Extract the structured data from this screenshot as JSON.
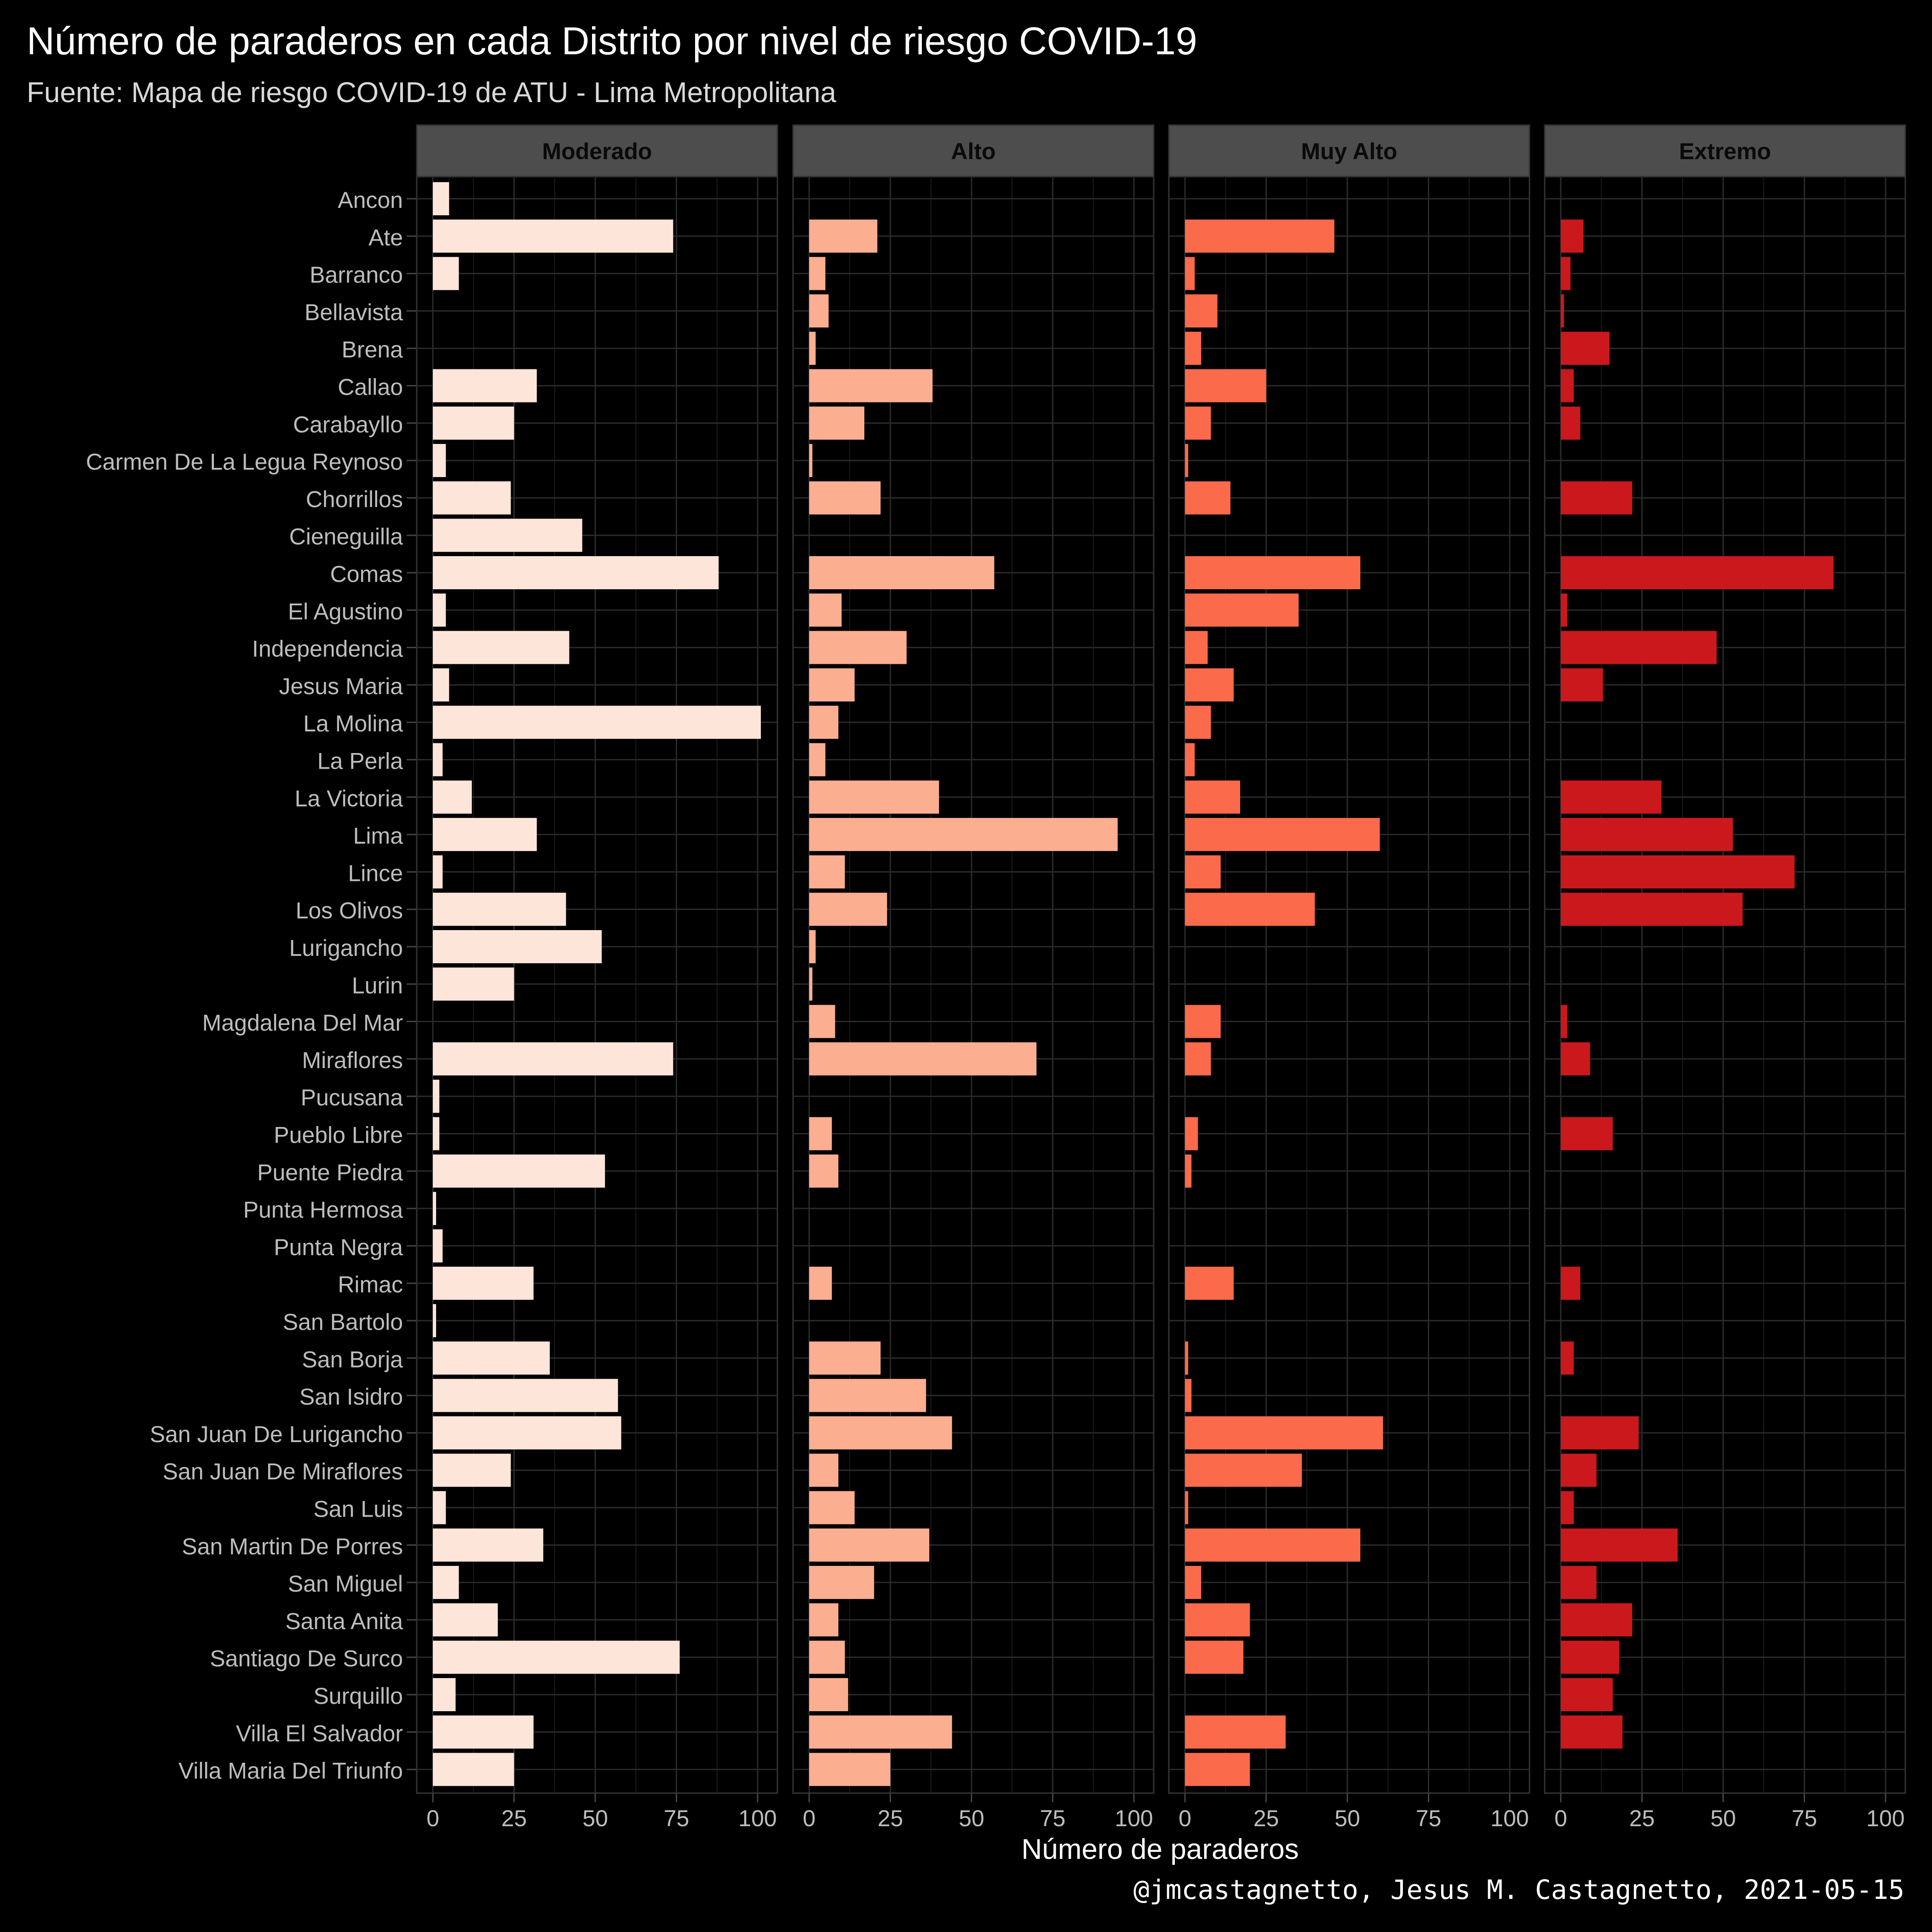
{
  "title": "Número de paraderos en cada Distrito por nivel de riesgo COVID-19",
  "subtitle": "Fuente: Mapa de riesgo COVID-19 de ATU - Lima Metropolitana",
  "caption": "@jmcastagnetto, Jesus M. Castagnetto, 2021-05-15",
  "chart_data": {
    "type": "bar",
    "orientation": "horizontal",
    "facet_by": "nivel de riesgo",
    "xlabel": "Número de paraderos",
    "ylabel": "",
    "xlim": [
      0,
      100
    ],
    "xticks": [
      0,
      25,
      50,
      75,
      100
    ],
    "grid": true,
    "categories": [
      "Ancon",
      "Ate",
      "Barranco",
      "Bellavista",
      "Brena",
      "Callao",
      "Carabayllo",
      "Carmen De La Legua Reynoso",
      "Chorrillos",
      "Cieneguilla",
      "Comas",
      "El Agustino",
      "Independencia",
      "Jesus Maria",
      "La Molina",
      "La Perla",
      "La Victoria",
      "Lima",
      "Lince",
      "Los Olivos",
      "Lurigancho",
      "Lurin",
      "Magdalena Del Mar",
      "Miraflores",
      "Pucusana",
      "Pueblo Libre",
      "Puente Piedra",
      "Punta Hermosa",
      "Punta Negra",
      "Rimac",
      "San Bartolo",
      "San Borja",
      "San Isidro",
      "San Juan De Lurigancho",
      "San Juan De Miraflores",
      "San Luis",
      "San Martin De Porres",
      "San Miguel",
      "Santa Anita",
      "Santiago De Surco",
      "Surquillo",
      "Villa El Salvador",
      "Villa Maria Del Triunfo"
    ],
    "series": [
      {
        "name": "Moderado",
        "color": "#fee5d9",
        "values": [
          5,
          74,
          8,
          null,
          null,
          32,
          25,
          4,
          24,
          46,
          88,
          4,
          42,
          5,
          101,
          3,
          12,
          32,
          3,
          41,
          52,
          25,
          null,
          74,
          2,
          2,
          53,
          1,
          3,
          31,
          1,
          36,
          57,
          58,
          24,
          4,
          34,
          8,
          20,
          76,
          7,
          31,
          25
        ]
      },
      {
        "name": "Alto",
        "color": "#fcae91",
        "values": [
          null,
          21,
          5,
          6,
          2,
          38,
          17,
          1,
          22,
          null,
          57,
          10,
          30,
          14,
          9,
          5,
          40,
          95,
          11,
          24,
          2,
          1,
          8,
          70,
          null,
          7,
          9,
          null,
          null,
          7,
          null,
          22,
          36,
          44,
          9,
          14,
          37,
          20,
          9,
          11,
          12,
          44,
          25
        ]
      },
      {
        "name": "Muy Alto",
        "color": "#fb6a4a",
        "values": [
          null,
          46,
          3,
          10,
          5,
          25,
          8,
          1,
          14,
          null,
          54,
          35,
          7,
          15,
          8,
          3,
          17,
          60,
          11,
          40,
          null,
          null,
          11,
          8,
          null,
          4,
          2,
          null,
          null,
          15,
          null,
          1,
          2,
          61,
          36,
          1,
          54,
          5,
          20,
          18,
          null,
          31,
          20
        ]
      },
      {
        "name": "Extremo",
        "color": "#cb181d",
        "values": [
          null,
          7,
          3,
          1,
          15,
          4,
          6,
          null,
          22,
          null,
          84,
          2,
          48,
          13,
          null,
          null,
          31,
          53,
          72,
          56,
          null,
          null,
          2,
          9,
          null,
          16,
          null,
          null,
          null,
          6,
          null,
          4,
          null,
          24,
          11,
          4,
          36,
          11,
          22,
          18,
          16,
          19,
          null
        ]
      }
    ]
  }
}
